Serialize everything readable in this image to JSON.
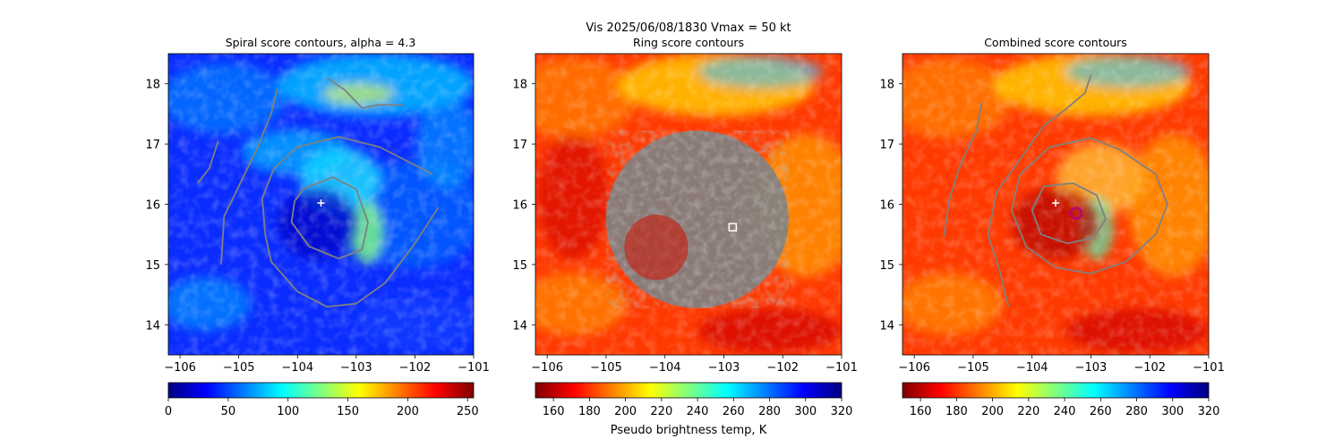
{
  "suptitle": "Vis  2025/06/08/1830    Vmax = 50 kt",
  "colors": {
    "contour": "#808080",
    "marker": "#ffffff",
    "combined_circle": "#b0008c",
    "jet": [
      "#00007f",
      "#0000ff",
      "#007fff",
      "#00ffff",
      "#7fff7f",
      "#ffff00",
      "#ff7f00",
      "#ff0000",
      "#7f0000"
    ]
  },
  "chart_data": [
    {
      "type": "image-contour",
      "title": "Spiral score contours, alpha =  4.3",
      "colormap": "jet",
      "xlim": [
        -106.2,
        -101.0
      ],
      "ylim": [
        13.5,
        18.5
      ],
      "xticks": [
        -106,
        -105,
        -104,
        -103,
        -102,
        -101
      ],
      "xtick_labels": [
        "−106",
        "−105",
        "−104",
        "−103",
        "−102",
        "−101"
      ],
      "yticks": [
        14,
        15,
        16,
        17,
        18
      ],
      "ytick_labels": [
        "14",
        "15",
        "16",
        "17",
        "18"
      ],
      "center_marker": {
        "lon": -103.6,
        "lat": 16.02,
        "symbol": "+"
      },
      "colorbar": {
        "vmin": 0,
        "vmax": 255,
        "reversed": false,
        "ticks": [
          "0",
          "50",
          "100",
          "150",
          "200",
          "250"
        ],
        "label": ""
      },
      "contours": [
        [
          [
            -105.7,
            16.35
          ],
          [
            -105.5,
            16.6
          ],
          [
            -105.35,
            17.05
          ]
        ],
        [
          [
            -105.3,
            15.0
          ],
          [
            -105.25,
            15.8
          ],
          [
            -105.0,
            16.3
          ],
          [
            -104.7,
            16.9
          ],
          [
            -104.45,
            17.5
          ],
          [
            -104.35,
            17.9
          ]
        ],
        [
          [
            -104.55,
            15.5
          ],
          [
            -104.6,
            16.1
          ],
          [
            -104.4,
            16.6
          ],
          [
            -104.0,
            16.95
          ],
          [
            -103.3,
            17.12
          ],
          [
            -102.6,
            16.95
          ],
          [
            -102.0,
            16.65
          ],
          [
            -101.7,
            16.5
          ]
        ],
        [
          [
            -101.6,
            15.95
          ],
          [
            -102.0,
            15.35
          ],
          [
            -102.5,
            14.7
          ],
          [
            -103.0,
            14.35
          ],
          [
            -103.5,
            14.3
          ],
          [
            -104.0,
            14.55
          ],
          [
            -104.45,
            15.05
          ],
          [
            -104.55,
            15.5
          ]
        ],
        [
          [
            -103.9,
            16.25
          ],
          [
            -103.4,
            16.45
          ],
          [
            -103.0,
            16.25
          ],
          [
            -102.8,
            15.7
          ],
          [
            -102.9,
            15.25
          ],
          [
            -103.3,
            15.1
          ],
          [
            -103.8,
            15.3
          ],
          [
            -104.1,
            15.7
          ],
          [
            -104.05,
            16.05
          ],
          [
            -103.9,
            16.25
          ]
        ],
        [
          [
            -103.5,
            18.1
          ],
          [
            -103.2,
            17.9
          ],
          [
            -102.9,
            17.6
          ],
          [
            -102.6,
            17.65
          ],
          [
            -102.2,
            17.65
          ]
        ]
      ]
    },
    {
      "type": "image-contour",
      "title": "Ring score contours",
      "colormap": "jet_r",
      "xlim": [
        -106.2,
        -101.0
      ],
      "ylim": [
        13.5,
        18.5
      ],
      "xticks": [
        -106,
        -105,
        -104,
        -103,
        -102,
        -101
      ],
      "xtick_labels": [
        "−106",
        "−105",
        "−104",
        "−103",
        "−102",
        "−101"
      ],
      "yticks": [
        14,
        15,
        16,
        17,
        18
      ],
      "ytick_labels": [
        "14",
        "15",
        "16",
        "17",
        "18"
      ],
      "center_marker": {
        "lon": -102.85,
        "lat": 15.62,
        "symbol": "square"
      },
      "colorbar": {
        "vmin": 150,
        "vmax": 320,
        "reversed": true,
        "ticks": [
          "160",
          "180",
          "200",
          "220",
          "240",
          "260",
          "280",
          "300",
          "320"
        ],
        "label": "Pseudo brightness temp, K"
      },
      "contour_fill_region": {
        "center_lon": -103.45,
        "center_lat": 15.75,
        "radius_deg": 1.55
      }
    },
    {
      "type": "image-contour",
      "title": "Combined score contours",
      "colormap": "jet_r",
      "xlim": [
        -106.2,
        -101.0
      ],
      "ylim": [
        13.5,
        18.5
      ],
      "xticks": [
        -106,
        -105,
        -104,
        -103,
        -102,
        -101
      ],
      "xtick_labels": [
        "−106",
        "−105",
        "−104",
        "−103",
        "−102",
        "−101"
      ],
      "yticks": [
        14,
        15,
        16,
        17,
        18
      ],
      "ytick_labels": [
        "14",
        "15",
        "16",
        "17",
        "18"
      ],
      "center_marker": {
        "lon": -103.6,
        "lat": 16.02,
        "symbol": "+"
      },
      "best_center": {
        "lon": -103.25,
        "lat": 15.85,
        "symbol": "circle"
      },
      "colorbar": {
        "vmin": 150,
        "vmax": 320,
        "reversed": true,
        "ticks": [
          "160",
          "180",
          "200",
          "220",
          "240",
          "260",
          "280",
          "300",
          "320"
        ],
        "label": ""
      },
      "contours": [
        [
          [
            -105.5,
            15.45
          ],
          [
            -105.4,
            16.1
          ],
          [
            -105.2,
            16.7
          ],
          [
            -104.95,
            17.2
          ],
          [
            -104.85,
            17.7
          ]
        ],
        [
          [
            -104.4,
            14.3
          ],
          [
            -104.55,
            14.9
          ],
          [
            -104.75,
            15.5
          ],
          [
            -104.6,
            16.2
          ],
          [
            -104.2,
            16.75
          ],
          [
            -103.8,
            17.3
          ],
          [
            -103.4,
            17.6
          ],
          [
            -103.1,
            17.85
          ],
          [
            -103.0,
            18.15
          ]
        ],
        [
          [
            -104.35,
            15.9
          ],
          [
            -104.2,
            16.5
          ],
          [
            -103.7,
            16.95
          ],
          [
            -103.0,
            17.1
          ],
          [
            -102.5,
            16.9
          ],
          [
            -101.9,
            16.5
          ],
          [
            -101.7,
            16.0
          ],
          [
            -101.9,
            15.5
          ],
          [
            -102.4,
            15.05
          ],
          [
            -103.0,
            14.85
          ],
          [
            -103.6,
            14.95
          ],
          [
            -104.1,
            15.3
          ],
          [
            -104.35,
            15.9
          ]
        ],
        [
          [
            -103.8,
            16.3
          ],
          [
            -103.3,
            16.35
          ],
          [
            -102.9,
            16.15
          ],
          [
            -102.75,
            15.75
          ],
          [
            -102.95,
            15.45
          ],
          [
            -103.4,
            15.35
          ],
          [
            -103.85,
            15.5
          ],
          [
            -104.0,
            15.9
          ],
          [
            -103.8,
            16.3
          ]
        ]
      ]
    }
  ]
}
